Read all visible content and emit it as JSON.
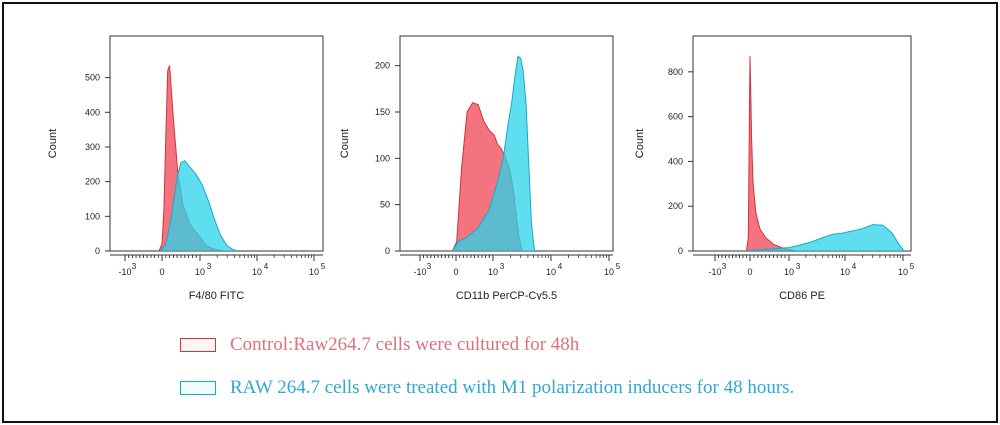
{
  "colors": {
    "control_fill": "#f26d78",
    "control_stroke": "#d0343f",
    "m1_fill": "#29d3ea",
    "m1_stroke": "#17a9c8",
    "overlap_fill": "#8e8fb0",
    "legend_control_text": "#e0707c",
    "legend_m1_text": "#2fa8d2"
  },
  "legend": [
    {
      "key": "control",
      "label": "Control:Raw264.7 cells were cultured for 48h"
    },
    {
      "key": "m1",
      "label": "RAW 264.7 cells were treated with M1 polarization inducers for 48 hours."
    }
  ],
  "chart_data": [
    {
      "type": "area",
      "xlabel": "F4/80  FITC",
      "ylabel": "Count",
      "ylim": [
        0,
        620
      ],
      "yticks": [
        0,
        100,
        200,
        300,
        400,
        500
      ],
      "xscale": "biexponential",
      "xticks": [
        {
          "value": -1000,
          "label": "-10",
          "exp": "3"
        },
        {
          "value": 0,
          "label": "0",
          "exp": ""
        },
        {
          "value": 1000,
          "label": "10",
          "exp": "3"
        },
        {
          "value": 10000,
          "label": "10",
          "exp": "4"
        },
        {
          "value": 100000,
          "label": "10",
          "exp": "5"
        }
      ],
      "series": [
        {
          "key": "control",
          "x": [
            -80,
            0,
            50,
            100,
            150,
            200,
            300,
            420,
            560,
            750,
            1000,
            1300,
            1800,
            2500
          ],
          "y": [
            0,
            20,
            120,
            330,
            520,
            535,
            380,
            220,
            130,
            75,
            40,
            15,
            5,
            0
          ]
        },
        {
          "key": "m1",
          "x": [
            -50,
            100,
            250,
            400,
            500,
            600,
            750,
            900,
            1100,
            1400,
            1800,
            2300,
            3000,
            3800,
            4600
          ],
          "y": [
            0,
            20,
            100,
            215,
            255,
            260,
            240,
            220,
            190,
            145,
            90,
            45,
            15,
            4,
            0
          ]
        }
      ]
    },
    {
      "type": "area",
      "xlabel": "CD11b  PerCP-Cy5.5",
      "ylabel": "Count",
      "ylim": [
        0,
        232
      ],
      "yticks": [
        0,
        50,
        100,
        150,
        200
      ],
      "xscale": "biexponential",
      "xticks": [
        {
          "value": -1000,
          "label": "-10",
          "exp": "3"
        },
        {
          "value": 0,
          "label": "0",
          "exp": ""
        },
        {
          "value": 1000,
          "label": "10",
          "exp": "3"
        },
        {
          "value": 10000,
          "label": "10",
          "exp": "4"
        },
        {
          "value": 100000,
          "label": "10",
          "exp": "5"
        }
      ],
      "series": [
        {
          "key": "control",
          "x": [
            -100,
            20,
            150,
            300,
            450,
            600,
            750,
            900,
            1050,
            1200,
            1400,
            1650,
            1900,
            2200,
            2500,
            2800,
            3200
          ],
          "y": [
            0,
            10,
            90,
            150,
            160,
            158,
            140,
            130,
            125,
            115,
            110,
            100,
            90,
            70,
            40,
            15,
            0
          ]
        },
        {
          "key": "m1",
          "x": [
            -100,
            50,
            300,
            600,
            900,
            1200,
            1500,
            1800,
            2100,
            2400,
            2700,
            3000,
            3300,
            3700,
            4100,
            4600,
            5200
          ],
          "y": [
            0,
            10,
            15,
            25,
            45,
            75,
            100,
            135,
            160,
            190,
            210,
            208,
            195,
            160,
            100,
            30,
            0
          ]
        }
      ]
    },
    {
      "type": "area",
      "xlabel": "CD86  PE",
      "ylabel": "Count",
      "ylim": [
        0,
        960
      ],
      "yticks": [
        0,
        200,
        400,
        600,
        800
      ],
      "xscale": "biexponential",
      "xticks": [
        {
          "value": -1000,
          "label": "-10",
          "exp": "3"
        },
        {
          "value": 0,
          "label": "0",
          "exp": ""
        },
        {
          "value": 1000,
          "label": "10",
          "exp": "3"
        },
        {
          "value": 10000,
          "label": "10",
          "exp": "4"
        },
        {
          "value": 100000,
          "label": "10",
          "exp": "5"
        }
      ],
      "series": [
        {
          "key": "control",
          "x": [
            -100,
            -50,
            -10,
            0,
            20,
            40,
            80,
            150,
            250,
            400,
            600,
            900,
            1300
          ],
          "y": [
            0,
            60,
            700,
            870,
            700,
            500,
            300,
            170,
            100,
            60,
            30,
            10,
            0
          ]
        },
        {
          "key": "m1",
          "x": [
            -100,
            0,
            200,
            600,
            1000,
            1500,
            2500,
            4000,
            6000,
            9000,
            14000,
            20000,
            30000,
            45000,
            65000,
            85000,
            105000
          ],
          "y": [
            0,
            3,
            5,
            10,
            15,
            25,
            40,
            60,
            75,
            80,
            90,
            100,
            118,
            115,
            80,
            30,
            0
          ]
        }
      ]
    }
  ]
}
